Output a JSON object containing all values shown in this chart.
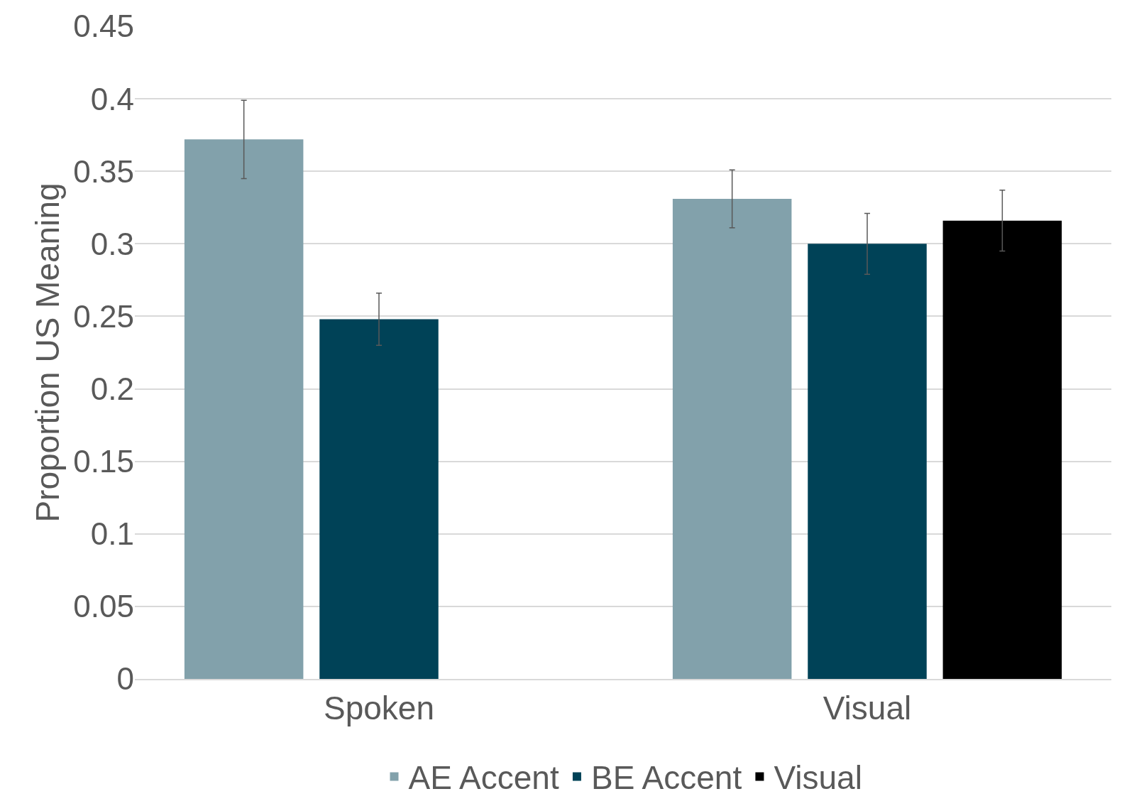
{
  "chart_data": {
    "type": "bar",
    "ylabel": "Proportion US Meaning",
    "categories": [
      "Spoken",
      "Visual"
    ],
    "series": [
      {
        "name": "AE Accent",
        "color": "#82a1ab",
        "values": [
          0.372,
          0.331
        ],
        "errors": [
          0.027,
          0.02
        ]
      },
      {
        "name": "BE Accent",
        "color": "#004257",
        "values": [
          0.248,
          0.3
        ],
        "errors": [
          0.018,
          0.021
        ]
      },
      {
        "name": "Visual",
        "color": "#000000",
        "values": [
          null,
          0.316
        ],
        "errors": [
          null,
          0.021
        ]
      }
    ],
    "ylim": [
      0,
      0.45
    ],
    "yticks": [
      0,
      0.05,
      0.1,
      0.15,
      0.2,
      0.25,
      0.3,
      0.35,
      0.4,
      0.45
    ],
    "grid": "y",
    "legend": "bottom"
  }
}
